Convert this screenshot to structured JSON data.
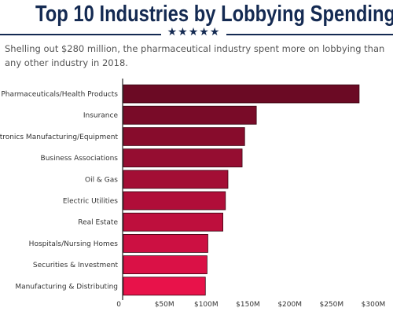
{
  "header": {
    "title": "Top 10 Industries by Lobbying Spending",
    "stars": "★★★★★",
    "subtitle": "Shelling out $280 million, the pharmaceutical industry spent more on lobbying than any other industry in 2018."
  },
  "colors": {
    "title": "#142a52",
    "bar_top": "#6b0a24",
    "bar_bottom": "#e8124a"
  },
  "chart_data": {
    "type": "bar",
    "orientation": "horizontal",
    "title": "",
    "xlabel": "",
    "ylabel": "",
    "categories": [
      "Pharmaceuticals/Health Products",
      "Insurance",
      "Electronics Manufacturing/Equipment",
      "Business Associations",
      "Oil & Gas",
      "Electric Utilities",
      "Real Estate",
      "Hospitals/Nursing Homes",
      "Securities & Investment",
      "Manufacturing & Distributing"
    ],
    "values": [
      283,
      160,
      146,
      143,
      126,
      123,
      120,
      102,
      101,
      99
    ],
    "units": "$M",
    "xlim": [
      0,
      300
    ],
    "xticks": [
      0,
      50,
      100,
      150,
      200,
      250,
      300
    ],
    "xtick_labels": [
      "0",
      "$50M",
      "$100M",
      "$150M",
      "$200M",
      "$250M",
      "$300M"
    ],
    "grid": false,
    "legend": "none"
  }
}
